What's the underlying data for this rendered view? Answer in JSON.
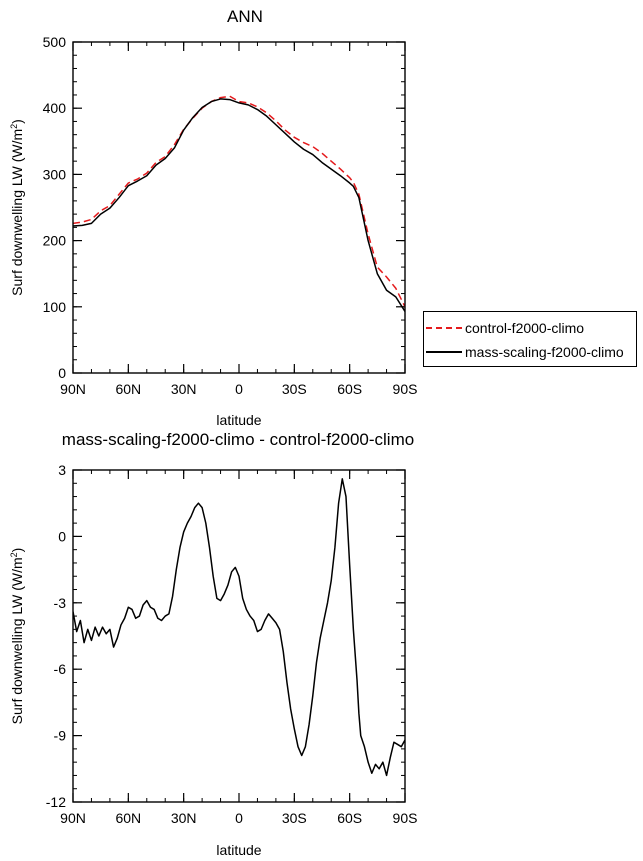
{
  "chart_data": [
    {
      "type": "line",
      "title": "ANN",
      "xlabel": "latitude",
      "ylabel": "Surf downwelling LW (W/m²)",
      "ylabel_main": "Surf downwelling LW (W/m",
      "ylabel_sup": "2",
      "ylabel_end": ")",
      "xlim": [
        90,
        -90
      ],
      "ylim": [
        0,
        500
      ],
      "x_ticks": [
        90,
        60,
        30,
        0,
        -30,
        -60,
        -90
      ],
      "x_tick_labels": [
        "90N",
        "60N",
        "30N",
        "0",
        "30S",
        "60S",
        "90S"
      ],
      "y_ticks": [
        0,
        100,
        200,
        300,
        400,
        500
      ],
      "y_tick_labels": [
        "0",
        "100",
        "200",
        "300",
        "400",
        "500"
      ],
      "legend": "right",
      "series": [
        {
          "name": "control-f2000-climo",
          "color": "#e41a1c",
          "dash": "dashed",
          "x": [
            90,
            85,
            80,
            75,
            70,
            65,
            60,
            55,
            50,
            45,
            40,
            35,
            30,
            25,
            20,
            15,
            10,
            5,
            0,
            -5,
            -10,
            -15,
            -20,
            -25,
            -30,
            -35,
            -40,
            -45,
            -50,
            -55,
            -60,
            -62,
            -65,
            -70,
            -75,
            -80,
            -85,
            -90
          ],
          "values": [
            226,
            228,
            232,
            245,
            253,
            270,
            287,
            293,
            302,
            318,
            327,
            345,
            368,
            385,
            400,
            410,
            416,
            418,
            410,
            408,
            402,
            393,
            381,
            367,
            356,
            348,
            342,
            332,
            320,
            308,
            295,
            288,
            270,
            210,
            160,
            145,
            128,
            100
          ]
        },
        {
          "name": "mass-scaling-f2000-climo",
          "color": "#000000",
          "dash": "solid",
          "x": [
            90,
            85,
            80,
            75,
            70,
            65,
            60,
            55,
            50,
            45,
            40,
            35,
            30,
            25,
            20,
            15,
            10,
            5,
            0,
            -5,
            -10,
            -15,
            -20,
            -25,
            -30,
            -35,
            -40,
            -45,
            -50,
            -55,
            -60,
            -62,
            -65,
            -70,
            -75,
            -80,
            -85,
            -90
          ],
          "values": [
            222,
            223,
            226,
            240,
            249,
            265,
            283,
            290,
            298,
            314,
            324,
            340,
            367,
            386,
            401,
            410,
            414,
            413,
            408,
            405,
            398,
            388,
            375,
            362,
            349,
            338,
            330,
            318,
            308,
            298,
            287,
            282,
            265,
            200,
            150,
            125,
            115,
            93
          ]
        }
      ]
    },
    {
      "type": "line",
      "title": "mass-scaling-f2000-climo - control-f2000-climo",
      "xlabel": "latitude",
      "ylabel": "Surf downwelling LW (W/m²)",
      "ylabel_main": "Surf downwelling LW (W/m",
      "ylabel_sup": "2",
      "ylabel_end": ")",
      "xlim": [
        90,
        -90
      ],
      "ylim": [
        -12,
        3
      ],
      "x_ticks": [
        90,
        60,
        30,
        0,
        -30,
        -60,
        -90
      ],
      "x_tick_labels": [
        "90N",
        "60N",
        "30N",
        "0",
        "30S",
        "60S",
        "90S"
      ],
      "y_ticks": [
        3,
        0,
        -3,
        -6,
        -9,
        -12
      ],
      "y_tick_labels": [
        "3",
        "0",
        "-3",
        "-6",
        "-9",
        "-12"
      ],
      "series": [
        {
          "color": "#000000",
          "x": [
            90,
            88,
            86,
            84,
            82,
            80,
            78,
            76,
            74,
            72,
            70,
            68,
            66,
            64,
            62,
            60,
            58,
            56,
            54,
            52,
            50,
            48,
            46,
            44,
            42,
            40,
            38,
            36,
            34,
            32,
            30,
            28,
            26,
            24,
            22,
            20,
            18,
            16,
            14,
            12,
            10,
            8,
            6,
            4,
            2,
            0,
            -2,
            -4,
            -6,
            -8,
            -10,
            -12,
            -14,
            -16,
            -18,
            -20,
            -22,
            -24,
            -26,
            -28,
            -30,
            -32,
            -34,
            -36,
            -38,
            -40,
            -42,
            -44,
            -46,
            -48,
            -50,
            -52,
            -54,
            -56,
            -58,
            -60,
            -62,
            -64,
            -65,
            -66,
            -68,
            -70,
            -72,
            -74,
            -76,
            -78,
            -80,
            -82,
            -84,
            -86,
            -88,
            -90
          ],
          "values": [
            -3.4,
            -4.3,
            -3.8,
            -4.8,
            -4.2,
            -4.7,
            -4.1,
            -4.5,
            -4.1,
            -4.4,
            -4.2,
            -5.0,
            -4.6,
            -4.0,
            -3.7,
            -3.2,
            -3.3,
            -3.7,
            -3.6,
            -3.1,
            -2.9,
            -3.2,
            -3.3,
            -3.7,
            -3.8,
            -3.6,
            -3.5,
            -2.7,
            -1.5,
            -0.5,
            0.2,
            0.6,
            0.9,
            1.3,
            1.5,
            1.3,
            0.6,
            -0.5,
            -1.8,
            -2.8,
            -2.9,
            -2.6,
            -2.2,
            -1.6,
            -1.4,
            -1.8,
            -2.8,
            -3.3,
            -3.6,
            -3.8,
            -4.3,
            -4.2,
            -3.8,
            -3.5,
            -3.7,
            -3.9,
            -4.2,
            -5.2,
            -6.6,
            -7.8,
            -8.7,
            -9.5,
            -9.9,
            -9.5,
            -8.5,
            -7.2,
            -5.7,
            -4.6,
            -3.8,
            -3.0,
            -2.0,
            -0.5,
            1.5,
            2.6,
            1.8,
            -1.3,
            -4.2,
            -6.5,
            -8.0,
            -9.0,
            -9.5,
            -10.2,
            -10.7,
            -10.3,
            -10.5,
            -10.2,
            -10.8,
            -10.0,
            -9.3,
            -9.4,
            -9.5,
            -9.2
          ]
        }
      ]
    }
  ]
}
